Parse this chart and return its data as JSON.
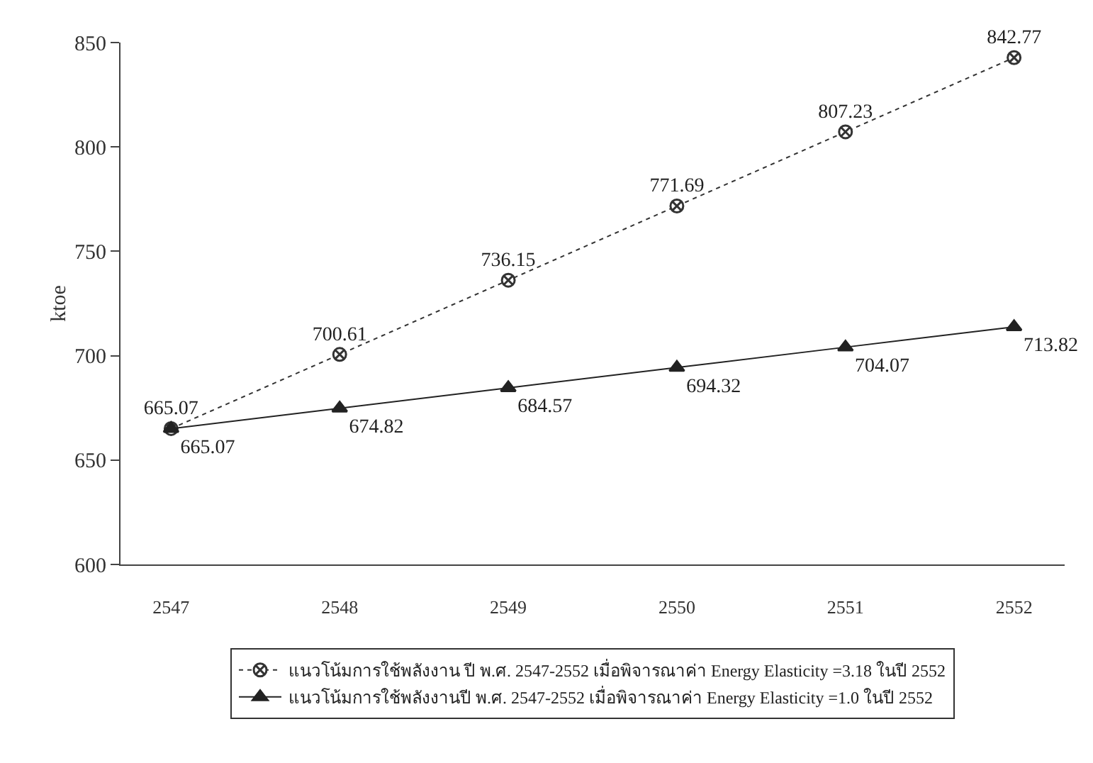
{
  "chart_data": {
    "type": "line",
    "ylabel": "ktoe",
    "categories": [
      "2547",
      "2548",
      "2549",
      "2550",
      "2551",
      "2552"
    ],
    "ylim": [
      600,
      850
    ],
    "yticks": [
      600,
      650,
      700,
      750,
      800,
      850
    ],
    "grid": false,
    "legend": "bottom",
    "data_labels": true,
    "series": [
      {
        "name": "แนวโน้มการใช้พลังงาน ปี พ.ศ. 2547-2552 เมื่อพิจารณาค่า Energy Elasticity =3.18 ในปี 2552",
        "color": "#333333",
        "marker": "cross",
        "line_style": "dotted",
        "values": [
          665.07,
          700.61,
          736.15,
          771.69,
          807.23,
          842.77
        ]
      },
      {
        "name": "แนวโน้มการใช้พลังงานปี พ.ศ. 2547-2552 เมื่อพิจารณาค่า Energy Elasticity =1.0 ในปี 2552",
        "color": "#222222",
        "marker": "triangle",
        "line_style": "solid",
        "values": [
          665.07,
          674.82,
          684.57,
          694.32,
          704.07,
          713.82
        ]
      }
    ]
  }
}
